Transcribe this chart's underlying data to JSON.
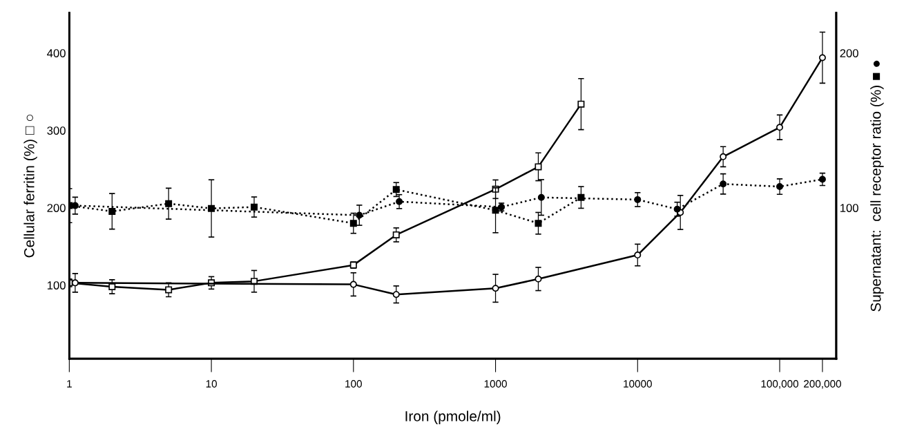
{
  "chart_data": {
    "type": "line",
    "xlabel": "Iron (pmole/ml)",
    "ylabel": "Cellular ferritin (%) □ ○",
    "y2label": "Supernatant:  cell receptor ratio (%) ■ ●",
    "log": "x",
    "grid": false,
    "xlim": [
      1,
      250000
    ],
    "xticks": [
      1,
      10,
      100,
      1000,
      10000,
      {
        "value": 100000,
        "label": "100,000"
      },
      {
        "value": 200000,
        "label": "200,000"
      }
    ],
    "ylim": [
      5,
      452
    ],
    "yticks": [
      100,
      200,
      300,
      400
    ],
    "y2lim": [
      2.5,
      226
    ],
    "y2ticks": [
      100,
      200
    ],
    "series": [
      {
        "color": "#000000",
        "marker": "square",
        "line_style": "solid",
        "x": [
          1,
          2,
          5,
          10,
          20,
          100,
          200,
          1000,
          2000,
          4000
        ],
        "values": [
          103,
          98,
          94,
          103,
          105,
          126,
          165,
          224,
          253,
          334
        ],
        "errors": [
          5,
          9,
          9,
          8,
          14,
          4,
          9,
          12,
          18,
          33
        ]
      },
      {
        "color": "#000000",
        "marker": "circle",
        "line_style": "solid",
        "x": [
          1.1,
          100,
          200,
          1000,
          2000,
          10000,
          20000,
          40000,
          100000,
          200000
        ],
        "values": [
          103,
          101,
          88,
          96,
          108,
          139,
          194,
          266,
          304,
          394
        ],
        "errors": [
          12,
          15,
          11,
          18,
          15,
          14,
          22,
          13,
          16,
          33
        ]
      },
      {
        "color": "#000000",
        "marker": "square",
        "line_style": "dotted",
        "axis": "y2",
        "x": [
          1,
          2,
          5,
          10,
          20,
          100,
          200,
          1000,
          2000,
          4000
        ],
        "values": [
          101.4,
          97.7,
          102.7,
          99.6,
          100.5,
          90,
          111.8,
          98.4,
          90,
          106.7
        ],
        "errors": [
          11,
          11.5,
          10,
          18.5,
          6.5,
          6.5,
          4.5,
          14.5,
          7,
          7
        ]
      },
      {
        "color": "#000000",
        "marker": "circle",
        "line_style": "dotted",
        "axis": "y2",
        "x": [
          1.1,
          110,
          210,
          1100,
          2100,
          10000,
          19000,
          40000,
          100000,
          200000
        ],
        "values": [
          101.4,
          95.2,
          104,
          100.5,
          106.7,
          105.3,
          99.1,
          115.4,
          113.7,
          118.4
        ],
        "errors": [
          5.5,
          6.5,
          4.5,
          2.5,
          11.5,
          4.5,
          4.5,
          6.5,
          5,
          4
        ]
      }
    ]
  }
}
